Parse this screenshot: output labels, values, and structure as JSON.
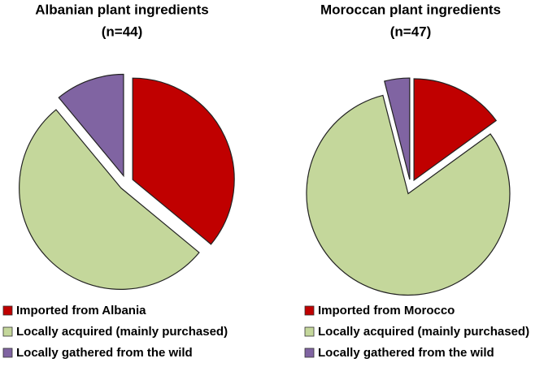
{
  "chart_data": [
    {
      "type": "pie",
      "title": "Albanian plant ingredients",
      "subtitle": "(n=44)",
      "categories": [
        "Imported from Albania",
        "Locally acquired (mainly purchased)",
        "Locally gathered from the wild"
      ],
      "values": [
        36,
        53,
        11
      ],
      "colors": [
        "#c00000",
        "#c4d79b",
        "#8064a2"
      ]
    },
    {
      "type": "pie",
      "title": "Moroccan plant ingredients",
      "subtitle": "(n=47)",
      "categories": [
        "Imported from Morocco",
        "Locally acquired (mainly purchased)",
        "Locally gathered from the wild"
      ],
      "values": [
        15,
        81,
        4
      ],
      "colors": [
        "#c00000",
        "#c4d79b",
        "#8064a2"
      ]
    }
  ]
}
